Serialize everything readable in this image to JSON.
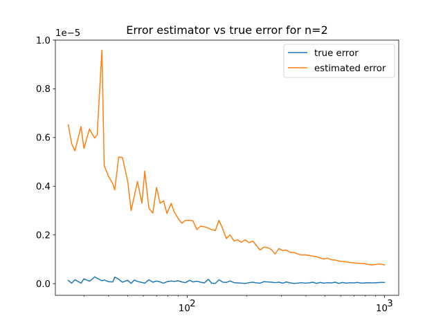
{
  "chart_data": {
    "type": "line",
    "title": "Error estimator vs true error for n=2",
    "xlabel": "",
    "ylabel": "",
    "x_scale": "log",
    "xlim": [
      21.5,
      1180
    ],
    "ylim": [
      -0.048,
      1.0
    ],
    "y_offset_text": "1e−5",
    "x_ticks": [
      {
        "value": 100,
        "label": "10",
        "sup": "2"
      },
      {
        "value": 1000,
        "label": "10",
        "sup": "3"
      }
    ],
    "y_ticks": [
      {
        "value": 0.0,
        "label": "0.0"
      },
      {
        "value": 0.2,
        "label": "0.2"
      },
      {
        "value": 0.4,
        "label": "0.4"
      },
      {
        "value": 0.6,
        "label": "0.6"
      },
      {
        "value": 0.8,
        "label": "0.8"
      },
      {
        "value": 1.0,
        "label": "1.0"
      }
    ],
    "grid": false,
    "legend_position": "top-right",
    "x": [
      25,
      26,
      27,
      28,
      29,
      30,
      32,
      33,
      34,
      35,
      37,
      38,
      40,
      42,
      43,
      45,
      47,
      50,
      52,
      54,
      56,
      59,
      61,
      64,
      67,
      70,
      73,
      76,
      79,
      83,
      86,
      90,
      94,
      98,
      103,
      107,
      112,
      117,
      122,
      128,
      133,
      139,
      145,
      152,
      158,
      165,
      173,
      180,
      188,
      197,
      206,
      215,
      224,
      234,
      245,
      256,
      267,
      279,
      292,
      305,
      318,
      333,
      348,
      363,
      379,
      396,
      414,
      433,
      452,
      472,
      493,
      515,
      538,
      562,
      587,
      614,
      641,
      670,
      700,
      731,
      764,
      798,
      834,
      871,
      910,
      950,
      1000
    ],
    "series": [
      {
        "name": "true error",
        "color": "#1f77b4",
        "values": [
          0.013,
          0.002,
          0.016,
          0.009,
          0.002,
          0.02,
          0.01,
          0.018,
          0.028,
          0.022,
          0.012,
          0.015,
          0.008,
          0.007,
          0.027,
          0.018,
          0.006,
          0.014,
          0.001,
          0.015,
          0.009,
          0.005,
          0.002,
          0.016,
          0.006,
          0.011,
          0.007,
          0.002,
          0.008,
          0.011,
          0.009,
          0.012,
          0.007,
          0.004,
          0.014,
          0.007,
          0.01,
          0.006,
          0.003,
          0.018,
          0.002,
          0.001,
          0.016,
          0.006,
          0.005,
          0.011,
          0.004,
          0.003,
          0.002,
          0.001,
          0.004,
          0.006,
          0.003,
          0.002,
          0.008,
          0.007,
          0.006,
          0.004,
          0.006,
          0.002,
          0.007,
          0.003,
          0.001,
          0.002,
          0.004,
          0.002,
          0.003,
          0.006,
          0.001,
          0.005,
          0.002,
          0.004,
          0.003,
          0.006,
          0.001,
          0.005,
          0.002,
          0.004,
          0.003,
          0.005,
          0.002,
          0.003,
          0.004,
          0.003,
          0.004,
          0.005,
          0.005
        ]
      },
      {
        "name": "estimated error",
        "color": "#ff7f0e",
        "values": [
          0.652,
          0.575,
          0.545,
          0.595,
          0.645,
          0.555,
          0.635,
          0.615,
          0.598,
          0.61,
          0.958,
          0.485,
          0.44,
          0.41,
          0.385,
          0.52,
          0.518,
          0.42,
          0.3,
          0.36,
          0.42,
          0.33,
          0.462,
          0.31,
          0.29,
          0.395,
          0.33,
          0.34,
          0.288,
          0.33,
          0.295,
          0.268,
          0.248,
          0.26,
          0.26,
          0.258,
          0.222,
          0.236,
          0.234,
          0.228,
          0.222,
          0.218,
          0.26,
          0.222,
          0.185,
          0.2,
          0.175,
          0.18,
          0.17,
          0.18,
          0.168,
          0.175,
          0.158,
          0.138,
          0.15,
          0.148,
          0.14,
          0.122,
          0.144,
          0.136,
          0.138,
          0.128,
          0.128,
          0.122,
          0.118,
          0.118,
          0.116,
          0.113,
          0.111,
          0.105,
          0.101,
          0.105,
          0.098,
          0.097,
          0.093,
          0.091,
          0.089,
          0.087,
          0.085,
          0.084,
          0.083,
          0.082,
          0.078,
          0.077,
          0.079,
          0.081,
          0.077
        ]
      }
    ]
  }
}
